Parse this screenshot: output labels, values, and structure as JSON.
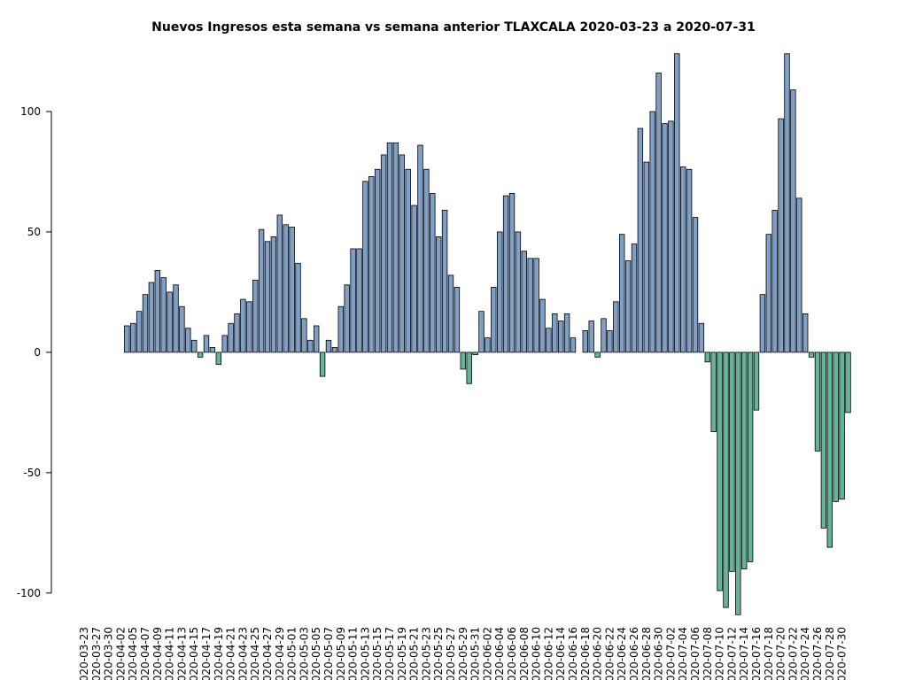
{
  "chart_data": {
    "type": "bar",
    "title": "Nuevos Ingresos esta semana vs semana anterior TLAXCALA 2020-03-23 a 2020-07-31",
    "categories": [
      "2020-03-23",
      null,
      "2020-03-27",
      null,
      "2020-03-30",
      null,
      "2020-04-02",
      null,
      "2020-04-05",
      null,
      "2020-04-07",
      null,
      "2020-04-09",
      null,
      "2020-04-11",
      null,
      "2020-04-13",
      null,
      "2020-04-15",
      null,
      "2020-04-17",
      null,
      "2020-04-19",
      null,
      "2020-04-21",
      null,
      "2020-04-23",
      null,
      "2020-04-25",
      null,
      "2020-04-27",
      null,
      "2020-04-29",
      null,
      "2020-05-01",
      null,
      "2020-05-03",
      null,
      "2020-05-05",
      null,
      "2020-05-07",
      null,
      "2020-05-09",
      null,
      "2020-05-11",
      null,
      "2020-05-13",
      null,
      "2020-05-15",
      null,
      "2020-05-17",
      null,
      "2020-05-19",
      null,
      "2020-05-21",
      null,
      "2020-05-23",
      null,
      "2020-05-25",
      null,
      "2020-05-27",
      null,
      "2020-05-29",
      null,
      "2020-05-31",
      null,
      "2020-06-02",
      null,
      "2020-06-04",
      null,
      "2020-06-06",
      null,
      "2020-06-08",
      null,
      "2020-06-10",
      null,
      "2020-06-12",
      null,
      "2020-06-14",
      null,
      "2020-06-16",
      null,
      "2020-06-18",
      null,
      "2020-06-20",
      null,
      "2020-06-22",
      null,
      "2020-06-24",
      null,
      "2020-06-26",
      null,
      "2020-06-28",
      null,
      "2020-06-30",
      null,
      "2020-07-02",
      null,
      "2020-07-04",
      null,
      "2020-07-06",
      null,
      "2020-07-08",
      null,
      "2020-07-10",
      null,
      "2020-07-12",
      null,
      "2020-07-14",
      null,
      "2020-07-16",
      null,
      "2020-07-18",
      null,
      "2020-07-20",
      null,
      "2020-07-22",
      null,
      "2020-07-24",
      null,
      "2020-07-26",
      null,
      "2020-07-28",
      null,
      "2020-07-30",
      null
    ],
    "values": [
      0,
      0,
      0,
      0,
      0,
      0,
      0,
      11,
      12,
      17,
      24,
      29,
      34,
      31,
      25,
      28,
      19,
      10,
      5,
      -2,
      7,
      2,
      -5,
      7,
      12,
      16,
      22,
      21,
      30,
      51,
      46,
      48,
      57,
      53,
      52,
      37,
      14,
      5,
      11,
      -10,
      5,
      2,
      19,
      28,
      43,
      43,
      71,
      73,
      76,
      82,
      87,
      87,
      82,
      76,
      61,
      86,
      76,
      66,
      48,
      59,
      32,
      27,
      -7,
      -13,
      -1,
      17,
      6,
      27,
      50,
      65,
      66,
      50,
      42,
      39,
      39,
      22,
      10,
      16,
      13,
      16,
      6,
      0,
      9,
      13,
      -2,
      14,
      9,
      21,
      49,
      38,
      45,
      93,
      79,
      100,
      116,
      95,
      96,
      124,
      77,
      76,
      56,
      12,
      -4,
      -33,
      -99,
      -106,
      -91,
      -109,
      -90,
      -87,
      -24,
      24,
      49,
      59,
      97,
      124,
      109,
      64,
      16,
      -2,
      -41,
      -73,
      -81,
      -62,
      -61,
      -25
    ],
    "positive_color": "#7f9fc6",
    "negative_color": "#66b39c",
    "ylim": [
      -110,
      125
    ],
    "yticks": [
      -100,
      -50,
      0,
      50,
      100
    ]
  }
}
